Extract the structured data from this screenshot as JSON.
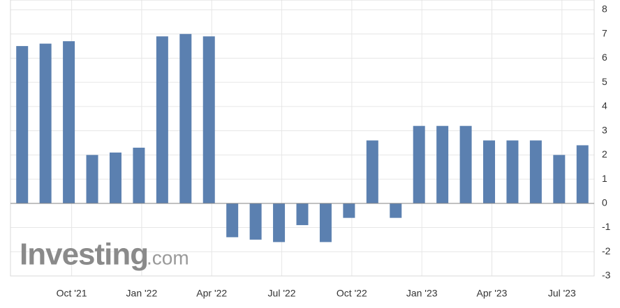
{
  "chart_data": {
    "type": "bar",
    "categories": [
      null,
      null,
      "Oct '21",
      null,
      null,
      "Jan '22",
      null,
      null,
      "Apr '22",
      null,
      null,
      "Jul '22",
      null,
      null,
      "Oct '22",
      null,
      null,
      "Jan '23",
      null,
      null,
      "Apr '23",
      null,
      null,
      "Jul '23",
      null
    ],
    "values": [
      6.5,
      6.6,
      6.7,
      2.0,
      2.1,
      2.3,
      6.9,
      7.0,
      6.9,
      -1.4,
      -1.5,
      -1.6,
      -0.9,
      -1.6,
      -0.6,
      2.6,
      -0.6,
      3.2,
      3.2,
      3.2,
      2.6,
      2.6,
      2.6,
      2.0,
      2.4
    ],
    "color": "#5b80b0",
    "ylim": [
      -3,
      8
    ],
    "yticks": [
      -3,
      -2,
      -1,
      0,
      1,
      2,
      3,
      4,
      5,
      6,
      7,
      8
    ],
    "grid": true,
    "watermark": {
      "brand": "Investing",
      "suffix": ".com"
    }
  }
}
